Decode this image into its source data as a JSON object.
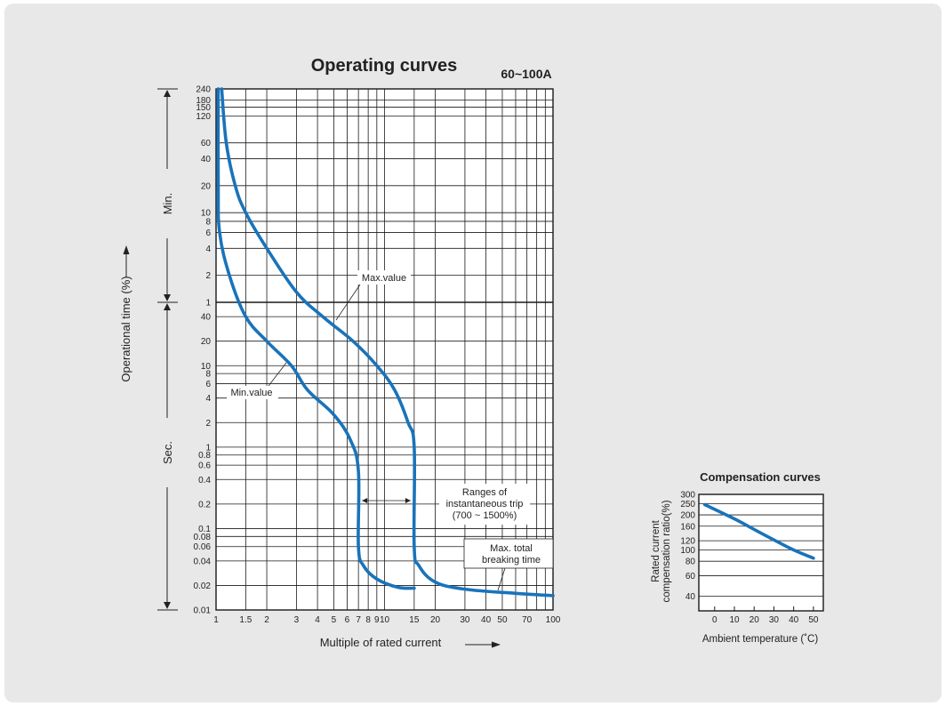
{
  "chart_data": [
    {
      "type": "line",
      "title": "Operating curves",
      "subtitle": "60~100A",
      "xlabel": "Multiple of rated current",
      "ylabel": "Operational time (%)",
      "x_scale": "log",
      "xlim": [
        1,
        100
      ],
      "x_ticks": [
        1,
        1.5,
        2,
        3,
        4,
        5,
        6,
        7,
        8,
        9,
        10,
        15,
        20,
        30,
        40,
        50,
        70,
        100
      ],
      "x_tick_labels": [
        "1",
        "1.5",
        "2",
        "3",
        "4",
        "5",
        "6",
        "7",
        "8",
        "9",
        "10",
        "15",
        "20",
        "30",
        "40",
        "50",
        "70",
        "100"
      ],
      "y_scale": "log",
      "y_ranges": [
        {
          "label": "Min.",
          "unit": "min",
          "from": 1,
          "to": 240,
          "ticks": [
            1,
            2,
            4,
            6,
            8,
            10,
            20,
            40,
            60,
            120,
            150,
            180,
            240
          ],
          "tick_labels": [
            "1",
            "2",
            "4",
            "6",
            "8",
            "10",
            "20",
            "40",
            "60",
            "120",
            "150",
            "180",
            "240"
          ]
        },
        {
          "label": "Sec.",
          "unit": "s",
          "from": 0.01,
          "to": 60,
          "ticks": [
            0.01,
            0.02,
            0.04,
            0.06,
            0.08,
            0.1,
            0.2,
            0.4,
            0.6,
            0.8,
            1,
            2,
            4,
            6,
            8,
            10,
            20,
            40
          ],
          "tick_labels": [
            "0.01",
            "0.02",
            "0.04",
            "0.06",
            "0.08",
            "0.1",
            "0.2",
            "0.4",
            "0.6",
            "0.8",
            "1",
            "2",
            "4",
            "6",
            "8",
            "10",
            "20",
            "40"
          ]
        }
      ],
      "series": [
        {
          "name": "Max.value",
          "color": "#1a73b9",
          "points": [
            {
              "x": 1.08,
              "t": 240,
              "unit": "min"
            },
            {
              "x": 1.15,
              "t": 60,
              "unit": "min"
            },
            {
              "x": 1.3,
              "t": 20,
              "unit": "min"
            },
            {
              "x": 1.5,
              "t": 10,
              "unit": "min"
            },
            {
              "x": 2,
              "t": 4,
              "unit": "min"
            },
            {
              "x": 3,
              "t": 1.3,
              "unit": "min"
            },
            {
              "x": 4.3,
              "t": 40,
              "unit": "s"
            },
            {
              "x": 6.5,
              "t": 20,
              "unit": "s"
            },
            {
              "x": 9,
              "t": 10,
              "unit": "s"
            },
            {
              "x": 11.5,
              "t": 5,
              "unit": "s"
            },
            {
              "x": 13.8,
              "t": 2,
              "unit": "s"
            },
            {
              "x": 15,
              "t": 1,
              "unit": "s"
            },
            {
              "x": 15,
              "t": 0.06,
              "unit": "s"
            },
            {
              "x": 16,
              "t": 0.035,
              "unit": "s"
            },
            {
              "x": 20,
              "t": 0.022,
              "unit": "s"
            },
            {
              "x": 30,
              "t": 0.018,
              "unit": "s"
            },
            {
              "x": 60,
              "t": 0.016,
              "unit": "s"
            },
            {
              "x": 100,
              "t": 0.015,
              "unit": "s"
            }
          ]
        },
        {
          "name": "Min.value",
          "color": "#1a73b9",
          "points": [
            {
              "x": 1.03,
              "t": 240,
              "unit": "min"
            },
            {
              "x": 1.03,
              "t": 20,
              "unit": "min"
            },
            {
              "x": 1.05,
              "t": 6,
              "unit": "min"
            },
            {
              "x": 1.2,
              "t": 2,
              "unit": "min"
            },
            {
              "x": 1.5,
              "t": 40,
              "unit": "s"
            },
            {
              "x": 2,
              "t": 20,
              "unit": "s"
            },
            {
              "x": 2.8,
              "t": 10,
              "unit": "s"
            },
            {
              "x": 3.5,
              "t": 5,
              "unit": "s"
            },
            {
              "x": 5,
              "t": 2.5,
              "unit": "s"
            },
            {
              "x": 6.3,
              "t": 1.2,
              "unit": "s"
            },
            {
              "x": 7,
              "t": 0.5,
              "unit": "s"
            },
            {
              "x": 7,
              "t": 0.06,
              "unit": "s"
            },
            {
              "x": 7.5,
              "t": 0.035,
              "unit": "s"
            },
            {
              "x": 9,
              "t": 0.024,
              "unit": "s"
            },
            {
              "x": 12,
              "t": 0.019,
              "unit": "s"
            },
            {
              "x": 15,
              "t": 0.0185,
              "unit": "s"
            }
          ]
        }
      ],
      "annotations": {
        "max_value": "Max.value",
        "min_value": "Min.value",
        "ranges": [
          "Ranges of",
          "instantaneous trip",
          "(700 ~ 1500%)"
        ],
        "breaking": [
          "Max. total",
          "breaking time"
        ]
      },
      "instantaneous_trip_range": [
        7,
        15
      ],
      "grid": true
    },
    {
      "type": "line",
      "title": "Compensation curves",
      "xlabel": "Ambient temperature (˚C)",
      "ylabel_lines": [
        "Rated current",
        "compensation ratio(%)"
      ],
      "x_ticks": [
        0,
        10,
        20,
        30,
        40,
        50
      ],
      "xlim": [
        -8,
        55
      ],
      "y_scale": "log",
      "ylim": [
        30,
        300
      ],
      "y_ticks": [
        40,
        60,
        80,
        100,
        120,
        160,
        200,
        250,
        300
      ],
      "series": [
        {
          "color": "#1a73b9",
          "x": [
            -5,
            10,
            20,
            30,
            40,
            50
          ],
          "y": [
            245,
            185,
            150,
            122,
            100,
            85
          ]
        }
      ],
      "grid": true
    }
  ]
}
